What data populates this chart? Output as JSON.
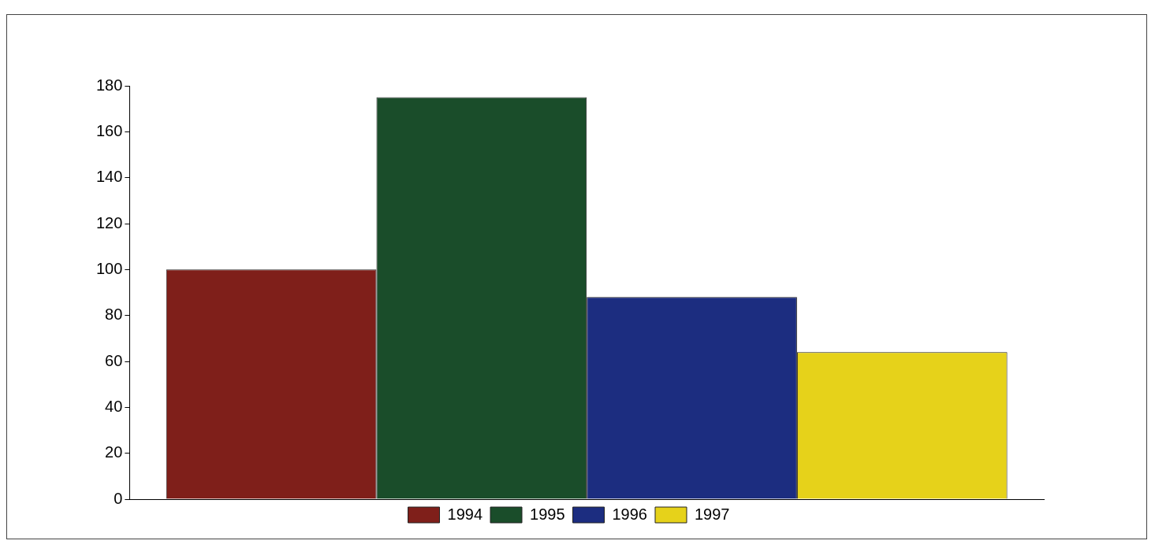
{
  "chart_data": {
    "type": "bar",
    "categories": [
      null
    ],
    "series": [
      {
        "name": "1994",
        "color": "#7f1f1a",
        "values": [
          100
        ]
      },
      {
        "name": "1995",
        "color": "#1a4d2a",
        "values": [
          175
        ]
      },
      {
        "name": "1996",
        "color": "#1c2d80",
        "values": [
          88
        ]
      },
      {
        "name": "1997",
        "color": "#e6d21a",
        "values": [
          64
        ]
      }
    ],
    "ylim": [
      0,
      180
    ],
    "yticks": [
      0,
      20,
      40,
      60,
      80,
      100,
      120,
      140,
      160,
      180
    ],
    "grid": false,
    "legend": "bottom"
  }
}
